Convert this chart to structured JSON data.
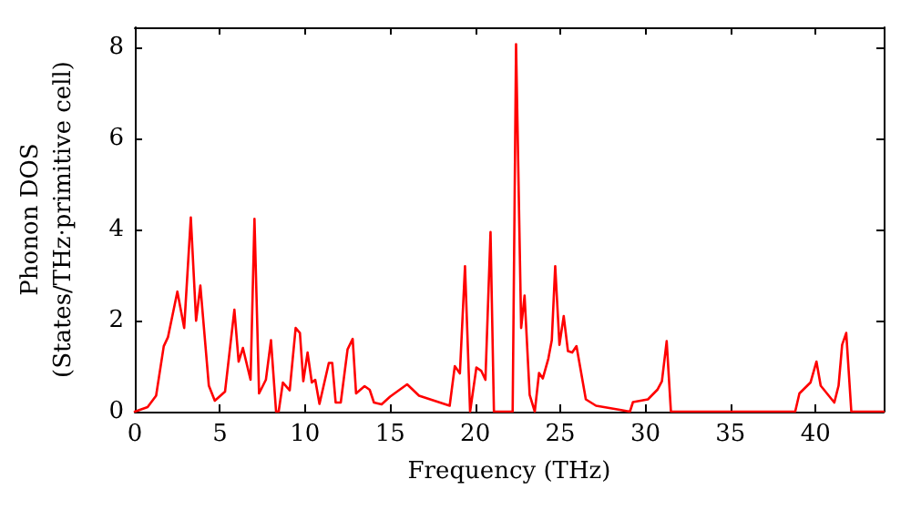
{
  "chart_data": {
    "type": "line",
    "xlabel": "Frequency (THz)",
    "ylabel": "Phonon DOS\n(States/THz·primitive cell)",
    "xlim": [
      0,
      44
    ],
    "ylim": [
      0,
      8.45
    ],
    "xticks": [
      0,
      5,
      10,
      15,
      20,
      25,
      30,
      35,
      40
    ],
    "yticks": [
      0,
      2,
      4,
      6,
      8
    ],
    "grid": false,
    "marker": "none",
    "line_style": "solid",
    "series": [
      {
        "color": "#ff0000",
        "x": [
          0,
          0.75,
          1.25,
          1.7,
          1.95,
          2.5,
          2.9,
          3.29,
          3.6,
          3.85,
          4.35,
          4.7,
          5.3,
          5.85,
          6.1,
          6.35,
          6.8,
          7.03,
          7.3,
          7.7,
          8.0,
          8.3,
          8.45,
          8.7,
          9.1,
          9.45,
          9.7,
          9.9,
          10.15,
          10.4,
          10.6,
          10.85,
          11.4,
          11.6,
          11.8,
          12.1,
          12.5,
          12.8,
          13.0,
          13.5,
          13.8,
          14.05,
          14.5,
          15.0,
          16.0,
          16.7,
          18.5,
          18.8,
          19.1,
          19.4,
          19.7,
          20.07,
          20.35,
          20.6,
          20.9,
          21.1,
          22.2,
          22.4,
          22.7,
          22.9,
          23.2,
          23.5,
          23.75,
          23.97,
          24.3,
          24.5,
          24.7,
          24.95,
          25.2,
          25.45,
          25.7,
          25.95,
          26.5,
          27.1,
          28.5,
          29.09,
          29.27,
          30.15,
          30.7,
          30.97,
          31.25,
          31.5,
          38.8,
          39.05,
          39.7,
          40.05,
          40.3,
          41.1,
          41.35,
          41.56,
          41.8,
          42.1,
          44.0
        ],
        "values": [
          0,
          0.1,
          0.35,
          1.44,
          1.64,
          2.64,
          1.84,
          4.27,
          2.0,
          2.77,
          0.57,
          0.24,
          0.44,
          2.24,
          1.1,
          1.4,
          0.7,
          4.24,
          0.4,
          0.7,
          1.57,
          0,
          0,
          0.64,
          0.47,
          1.84,
          1.73,
          0.67,
          1.3,
          0.64,
          0.7,
          0.17,
          1.07,
          1.07,
          0.2,
          0.2,
          1.37,
          1.6,
          0.4,
          0.56,
          0.48,
          0.2,
          0.16,
          0.33,
          0.6,
          0.35,
          0.13,
          1.0,
          0.84,
          3.2,
          0,
          0.97,
          0.9,
          0.7,
          3.95,
          0,
          0,
          8.08,
          1.84,
          2.55,
          0.37,
          0,
          0.85,
          0.73,
          1.17,
          1.57,
          3.2,
          1.47,
          2.1,
          1.33,
          1.3,
          1.44,
          0.27,
          0.13,
          0.04,
          0,
          0.21,
          0.27,
          0.48,
          0.67,
          1.55,
          0,
          0,
          0.4,
          0.64,
          1.1,
          0.57,
          0.2,
          0.57,
          1.47,
          1.73,
          0,
          0
        ]
      }
    ]
  }
}
